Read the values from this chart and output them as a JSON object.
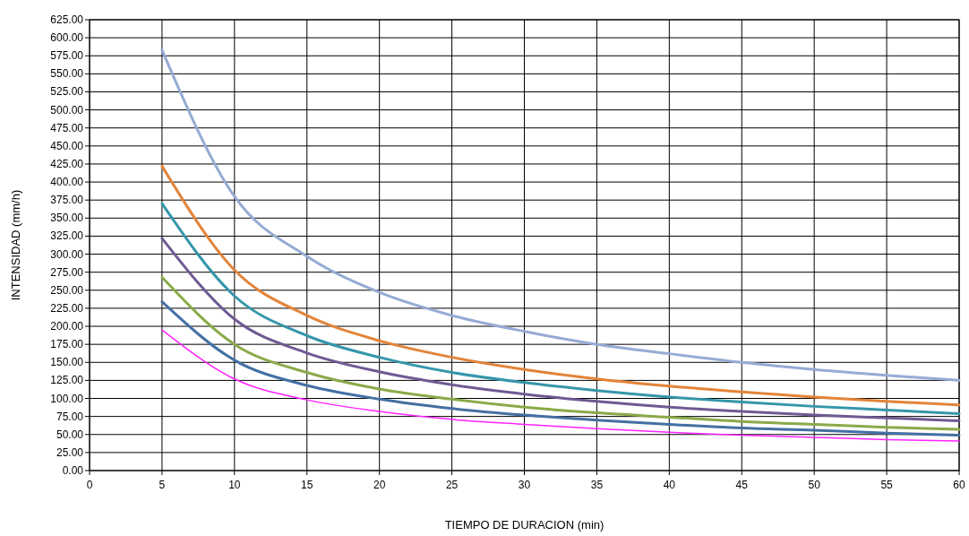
{
  "chart_data": {
    "type": "line",
    "xlabel": "TIEMPO DE DURACION (min)",
    "ylabel": "INTENSIDAD (mm/h)",
    "x": [
      5,
      10,
      15,
      20,
      25,
      30,
      35,
      40,
      45,
      50,
      55,
      60
    ],
    "series": [
      {
        "color": "#95abd4",
        "values": [
          583,
          380,
          297,
          247,
          215,
          193,
          175,
          162,
          150,
          140,
          132,
          125
        ]
      },
      {
        "color": "#e2843a",
        "values": [
          422,
          278,
          215,
          180,
          157,
          140,
          127,
          117,
          109,
          102,
          96,
          91
        ]
      },
      {
        "color": "#3596ab",
        "values": [
          370,
          242,
          187,
          157,
          136,
          122,
          111,
          102,
          95,
          89,
          84,
          79
        ]
      },
      {
        "color": "#6f5a93",
        "values": [
          322,
          210,
          163,
          137,
          119,
          106,
          96,
          88,
          82,
          77,
          73,
          69
        ]
      },
      {
        "color": "#8aaa4a",
        "values": [
          268,
          175,
          136,
          113,
          99,
          88,
          80,
          74,
          68,
          64,
          60,
          57
        ]
      },
      {
        "color": "#4470a4",
        "values": [
          234,
          153,
          118,
          99,
          86,
          77,
          70,
          64,
          59,
          56,
          52,
          49
        ]
      },
      {
        "color": "#ff22ff",
        "values": [
          195,
          127,
          98,
          82,
          71,
          64,
          58,
          53,
          49,
          46,
          43,
          41
        ]
      }
    ],
    "xlim": [
      0,
      60
    ],
    "xticks": [
      0,
      5,
      10,
      15,
      20,
      25,
      30,
      35,
      40,
      45,
      50,
      55,
      60
    ],
    "ylim": [
      0,
      625
    ],
    "yticks": [
      {
        "value": 0,
        "label": "0.00"
      },
      {
        "value": 25,
        "label": "25.00"
      },
      {
        "value": 50,
        "label": "50.00"
      },
      {
        "value": 75,
        "label": "75.00"
      },
      {
        "value": 100,
        "label": "100.00"
      },
      {
        "value": 125,
        "label": "125.00"
      },
      {
        "value": 150,
        "label": "150.00"
      },
      {
        "value": 175,
        "label": "175.00"
      },
      {
        "value": 200,
        "label": "200.00"
      },
      {
        "value": 225,
        "label": "225.00"
      },
      {
        "value": 250,
        "label": "250.00"
      },
      {
        "value": 275,
        "label": "275.00"
      },
      {
        "value": 300,
        "label": "300.00"
      },
      {
        "value": 325,
        "label": "325.00"
      },
      {
        "value": 350,
        "label": "350.00"
      },
      {
        "value": 375,
        "label": "375.00"
      },
      {
        "value": 400,
        "label": "400.00"
      },
      {
        "value": 425,
        "label": "425.00"
      },
      {
        "value": 450,
        "label": "450.00"
      },
      {
        "value": 475,
        "label": "475.00"
      },
      {
        "value": 500,
        "label": "500.00"
      },
      {
        "value": 525,
        "label": "525.00"
      },
      {
        "value": 550,
        "label": "550.00"
      },
      {
        "value": 575,
        "label": "575.00"
      },
      {
        "value": 600,
        "label": "600.00"
      },
      {
        "value": 625,
        "label": "625.00"
      }
    ],
    "grid": true,
    "marker": "none",
    "line_style": "solid"
  }
}
